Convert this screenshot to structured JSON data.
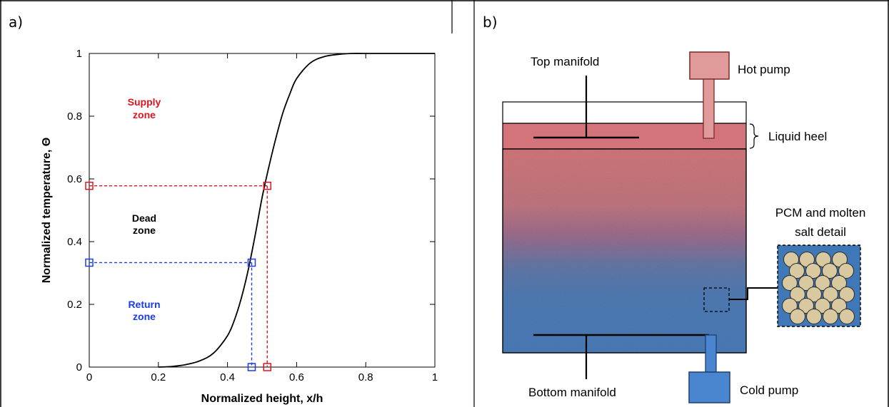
{
  "panel_a": {
    "label": "a)",
    "zones": {
      "supply": [
        "Supply",
        "zone"
      ],
      "dead": [
        "Dead",
        "zone"
      ],
      "return": [
        "Return",
        "zone"
      ]
    },
    "colors": {
      "supply": "#e0141e",
      "dead": "#000000",
      "return": "#1a3cf0"
    },
    "chart_data": {
      "type": "line",
      "xlabel": "Normalized height, x/h",
      "ylabel": "Normalized temperature, Θ",
      "xlim": [
        0,
        1
      ],
      "ylim": [
        0,
        1
      ],
      "x_ticks": [
        "0",
        "0.2",
        "0.4",
        "0.6",
        "0.8",
        "1"
      ],
      "y_ticks": [
        "0",
        "0.2",
        "0.4",
        "0.6",
        "0.8",
        "1"
      ],
      "series": [
        {
          "x": [
            0.2,
            0.24,
            0.28,
            0.32,
            0.36,
            0.4,
            0.42,
            0.44,
            0.46,
            0.48,
            0.5,
            0.52,
            0.54,
            0.56,
            0.58,
            0.6,
            0.64,
            0.68,
            0.72,
            0.76,
            0.8,
            0.9,
            1.0
          ],
          "y": [
            0.0,
            0.002,
            0.008,
            0.02,
            0.045,
            0.1,
            0.15,
            0.22,
            0.31,
            0.42,
            0.54,
            0.64,
            0.73,
            0.81,
            0.87,
            0.92,
            0.97,
            0.99,
            0.997,
            1.0,
            1.0,
            1.0,
            1.0
          ]
        }
      ],
      "markers": [
        {
          "zone": "supply",
          "x": 0.515,
          "y": 0.578
        },
        {
          "zone": "return",
          "x": 0.47,
          "y": 0.333
        }
      ],
      "grid": false
    }
  },
  "panel_b": {
    "label": "b)",
    "labels": {
      "top_manifold": "Top manifold",
      "hot_pump": "Hot pump",
      "liquid_heel": "Liquid heel",
      "pcm_detail": [
        "PCM and molten",
        "salt detail"
      ],
      "bottom_manifold": "Bottom manifold",
      "cold_pump": "Cold pump"
    },
    "colors": {
      "hot": "#d9777a",
      "cold": "#4a7cb8",
      "heel": "#d2747a",
      "hot_pump": "#e09a9a",
      "cold_pump": "#4a86d0",
      "particle": "#d9c9a0",
      "detail_bg": "#3f77b7"
    }
  }
}
